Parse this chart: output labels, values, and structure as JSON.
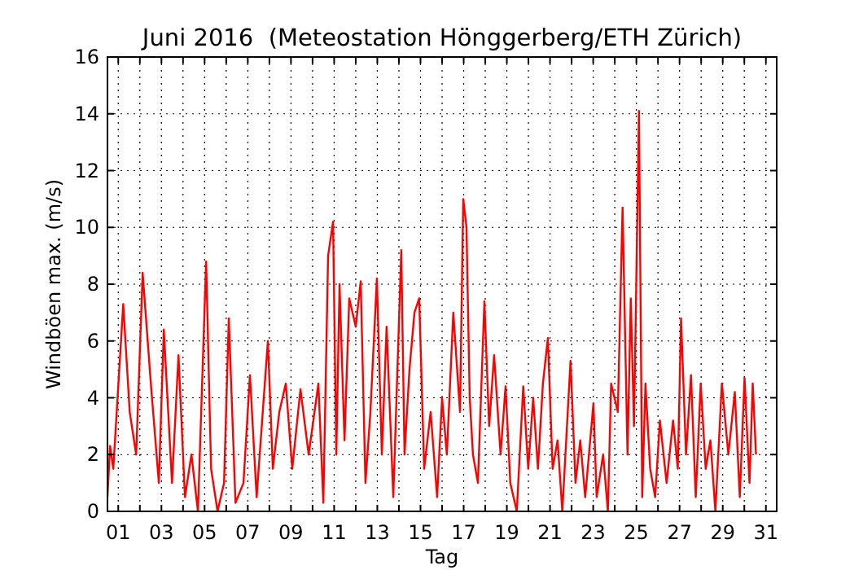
{
  "chart_data": {
    "type": "line",
    "title": "Juni 2016  (Meteostation Hönggerberg/ETH Zürich)",
    "xlabel": "Tag",
    "ylabel": "Windböen max. (m/s)",
    "x": [
      0.5,
      0.62,
      0.77,
      1.23,
      1.53,
      1.83,
      2.13,
      2.51,
      2.88,
      3.11,
      3.49,
      3.79,
      4.09,
      4.39,
      4.69,
      5.07,
      5.3,
      5.6,
      5.9,
      6.12,
      6.43,
      6.8,
      7.1,
      7.41,
      7.93,
      8.16,
      8.46,
      8.76,
      9.06,
      9.44,
      9.82,
      10.27,
      10.5,
      10.72,
      10.95,
      11.1,
      11.25,
      11.48,
      11.7,
      12,
      12.23,
      12.45,
      12.68,
      12.98,
      13.21,
      13.43,
      13.74,
      14.11,
      14.26,
      14.49,
      14.72,
      14.94,
      15.17,
      15.47,
      15.77,
      16,
      16.22,
      16.52,
      16.83,
      16.98,
      17.13,
      17.28,
      17.43,
      17.66,
      17.96,
      18.18,
      18.41,
      18.71,
      18.94,
      19.16,
      19.46,
      19.76,
      19.99,
      20.22,
      20.44,
      20.67,
      20.9,
      21.12,
      21.35,
      21.57,
      21.95,
      22.18,
      22.4,
      22.63,
      23.01,
      23.16,
      23.46,
      23.68,
      23.83,
      24.14,
      24.36,
      24.59,
      24.74,
      24.89,
      25.12,
      25.27,
      25.42,
      25.64,
      25.87,
      26.09,
      26.4,
      26.7,
      26.92,
      27.07,
      27.3,
      27.53,
      27.75,
      27.98,
      28.21,
      28.43,
      28.66,
      28.96,
      29.26,
      29.56,
      29.79,
      30.01,
      30.24,
      30.39,
      30.54
    ],
    "series": [
      {
        "color": "#ff0000",
        "values": [
          0.5,
          2.3,
          1.5,
          7.3,
          3.5,
          2,
          8.4,
          4.5,
          1,
          6.4,
          1,
          5.5,
          0.5,
          2,
          0,
          8.8,
          1.5,
          0,
          1,
          6.8,
          0.3,
          1,
          4.8,
          0.5,
          6,
          1.5,
          3.5,
          4.5,
          1.5,
          4.3,
          2,
          4.5,
          0.3,
          9,
          10.2,
          2,
          8,
          2.5,
          7.5,
          6.5,
          8.1,
          1,
          3.5,
          8.2,
          2,
          6.5,
          0.5,
          9.2,
          2,
          5,
          7,
          7.5,
          1.5,
          3.5,
          0.5,
          4,
          2,
          7,
          3.5,
          11,
          10,
          4,
          2,
          1,
          7.4,
          3,
          5.5,
          2,
          4.4,
          1,
          0,
          4.4,
          1.5,
          4,
          1.5,
          4.5,
          6.1,
          1.5,
          2.5,
          0,
          5.3,
          1,
          2.5,
          0.5,
          3.8,
          0.5,
          2,
          0,
          4.5,
          3.5,
          10.7,
          2,
          7.5,
          3,
          14.1,
          0.5,
          4.5,
          1.5,
          0.5,
          3.2,
          1,
          3.2,
          1.5,
          6.8,
          2,
          4.8,
          0.5,
          4.5,
          1.5,
          2.5,
          0,
          4.5,
          2,
          4.2,
          0.5,
          4.7,
          1,
          4.5,
          2
        ]
      }
    ],
    "xlim": [
      0.5,
      31.5
    ],
    "xticks": [
      {
        "value": 1,
        "label": "01"
      },
      {
        "value": 2,
        "label": null
      },
      {
        "value": 3,
        "label": "03"
      },
      {
        "value": 4,
        "label": null
      },
      {
        "value": 5,
        "label": "05"
      },
      {
        "value": 6,
        "label": null
      },
      {
        "value": 7,
        "label": "07"
      },
      {
        "value": 8,
        "label": null
      },
      {
        "value": 9,
        "label": "09"
      },
      {
        "value": 10,
        "label": null
      },
      {
        "value": 11,
        "label": "11"
      },
      {
        "value": 12,
        "label": null
      },
      {
        "value": 13,
        "label": "13"
      },
      {
        "value": 14,
        "label": null
      },
      {
        "value": 15,
        "label": "15"
      },
      {
        "value": 16,
        "label": null
      },
      {
        "value": 17,
        "label": "17"
      },
      {
        "value": 18,
        "label": null
      },
      {
        "value": 19,
        "label": "19"
      },
      {
        "value": 20,
        "label": null
      },
      {
        "value": 21,
        "label": "21"
      },
      {
        "value": 22,
        "label": null
      },
      {
        "value": 23,
        "label": "23"
      },
      {
        "value": 24,
        "label": null
      },
      {
        "value": 25,
        "label": "25"
      },
      {
        "value": 26,
        "label": null
      },
      {
        "value": 27,
        "label": "27"
      },
      {
        "value": 28,
        "label": null
      },
      {
        "value": 29,
        "label": "29"
      },
      {
        "value": 30,
        "label": null
      },
      {
        "value": 31,
        "label": "31"
      }
    ],
    "ylim": [
      0,
      16
    ],
    "yticks": [
      0,
      2,
      4,
      6,
      8,
      10,
      12,
      14,
      16
    ],
    "grid": true,
    "line_style": "solid"
  }
}
